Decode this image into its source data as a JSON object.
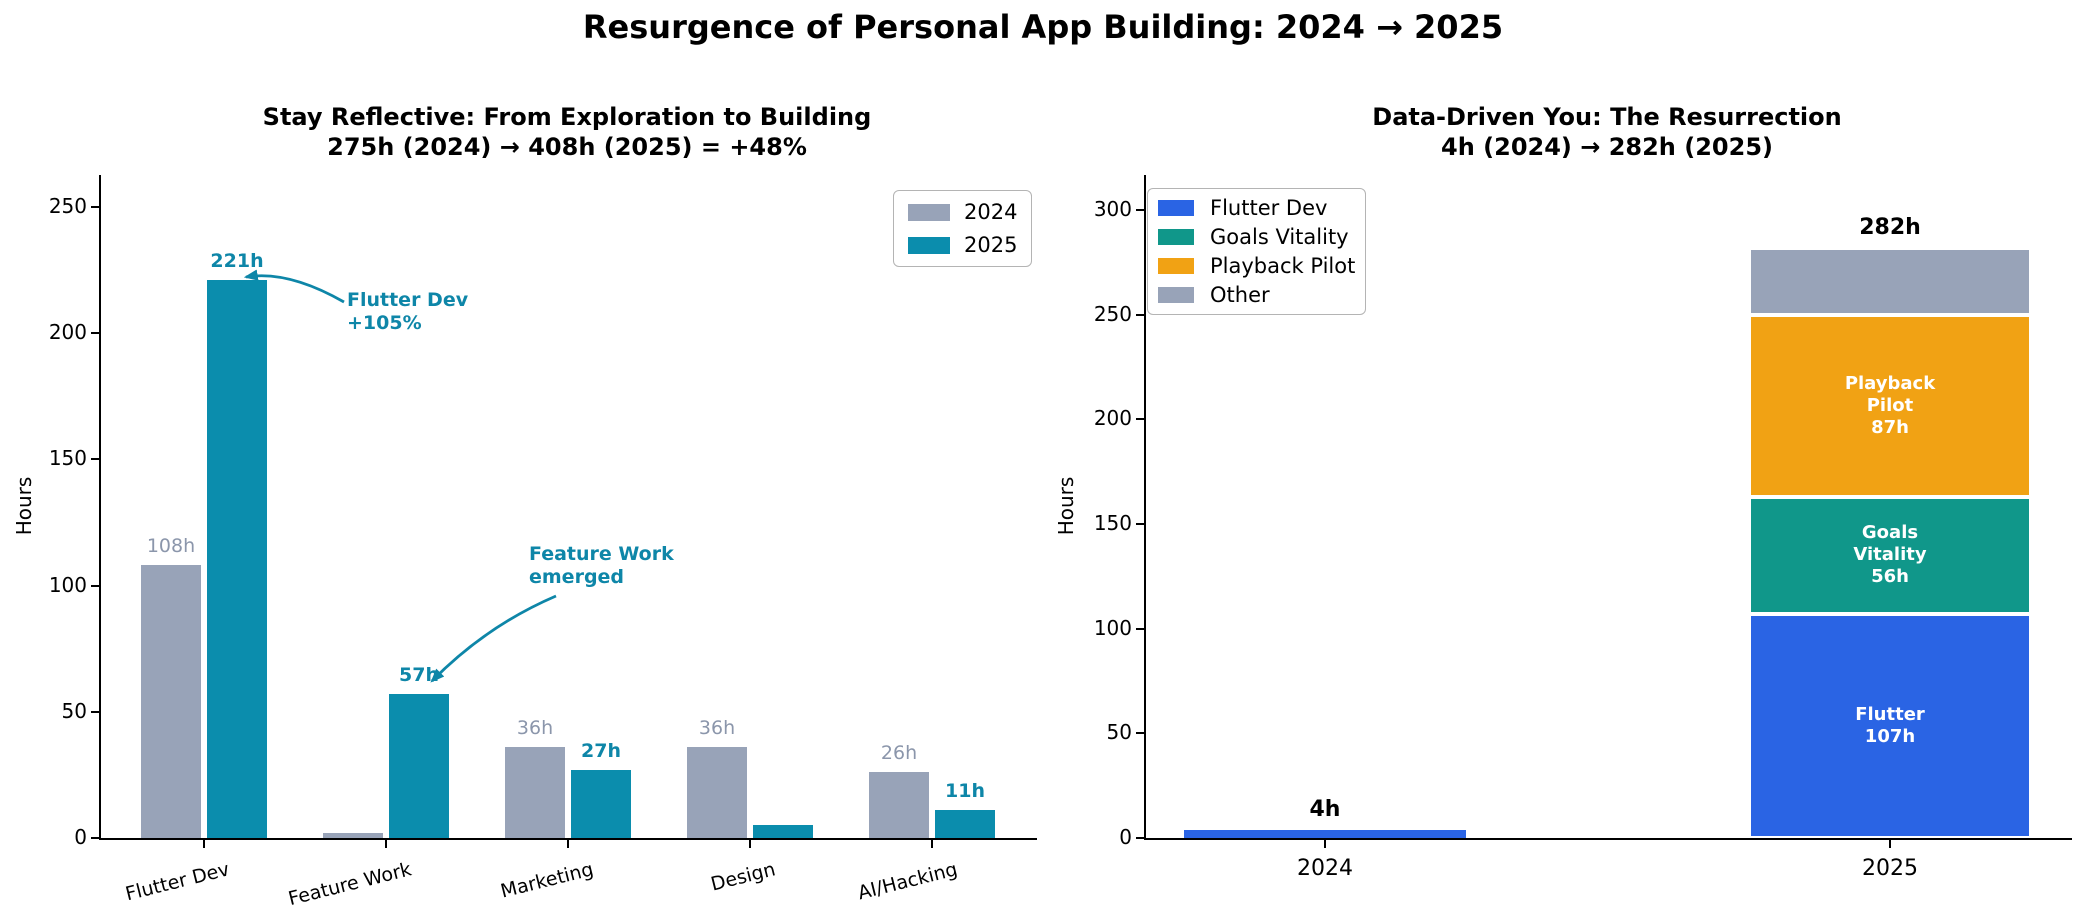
{
  "main_title": "Resurgence of Personal App Building: 2024 → 2025",
  "colors": {
    "bar_2024": "#98a3b8",
    "bar_2025": "#0b8dad",
    "label_2024": "#8b96ab",
    "teal_text": "#0e86a8",
    "flutter_blue": "#2a64e4",
    "goals_green": "#10978a",
    "playback_orange": "#f1a214",
    "other_gray": "#98a3b8",
    "axis": "#000000"
  },
  "chart_data": [
    {
      "type": "bar",
      "title": "Stay Reflective: From Exploration to Building",
      "subtitle": "275h (2024) → 408h (2025) = +48%",
      "xlabel": "",
      "ylabel": "Hours",
      "ylim": [
        0,
        262
      ],
      "yticks": [
        0,
        50,
        100,
        150,
        200,
        250
      ],
      "grid": false,
      "legend_position": "upper right",
      "categories": [
        "Flutter Dev",
        "Feature Work",
        "Marketing",
        "Design",
        "AI/Hacking"
      ],
      "series": [
        {
          "name": "2024",
          "color": "#98a3b8",
          "values": [
            108,
            2,
            36,
            36,
            26
          ],
          "labels": [
            "108h",
            null,
            "36h",
            "36h",
            "26h"
          ]
        },
        {
          "name": "2025",
          "color": "#0b8dad",
          "values": [
            221,
            57,
            27,
            5,
            11
          ],
          "labels": [
            "221h",
            "57h",
            "27h",
            null,
            "11h"
          ]
        }
      ],
      "annotations": [
        {
          "lines": [
            "Flutter Dev",
            "+105%"
          ]
        },
        {
          "lines": [
            "Feature Work",
            "emerged"
          ]
        }
      ]
    },
    {
      "type": "stacked-bar",
      "title": "Data-Driven You: The Resurrection",
      "subtitle": "4h (2024) → 282h (2025)",
      "xlabel": "",
      "ylabel": "Hours",
      "ylim": [
        0,
        316
      ],
      "yticks": [
        0,
        50,
        100,
        150,
        200,
        250,
        300
      ],
      "grid": false,
      "legend_position": "upper left",
      "categories": [
        "2024",
        "2025"
      ],
      "series": [
        {
          "name": "Flutter Dev",
          "color": "#2a64e4",
          "values": [
            4,
            107
          ],
          "labels": [
            null,
            [
              "Flutter",
              "107h"
            ]
          ]
        },
        {
          "name": "Goals Vitality",
          "color": "#10978a",
          "values": [
            0,
            56
          ],
          "labels": [
            null,
            [
              "Goals",
              "Vitality",
              "56h"
            ]
          ]
        },
        {
          "name": "Playback Pilot",
          "color": "#f1a214",
          "values": [
            0,
            87
          ],
          "labels": [
            null,
            [
              "Playback",
              "Pilot",
              "87h"
            ]
          ]
        },
        {
          "name": "Other",
          "color": "#98a3b8",
          "values": [
            0,
            32
          ],
          "labels": [
            null,
            null
          ]
        }
      ],
      "totals": [
        "4h",
        "282h"
      ]
    }
  ]
}
